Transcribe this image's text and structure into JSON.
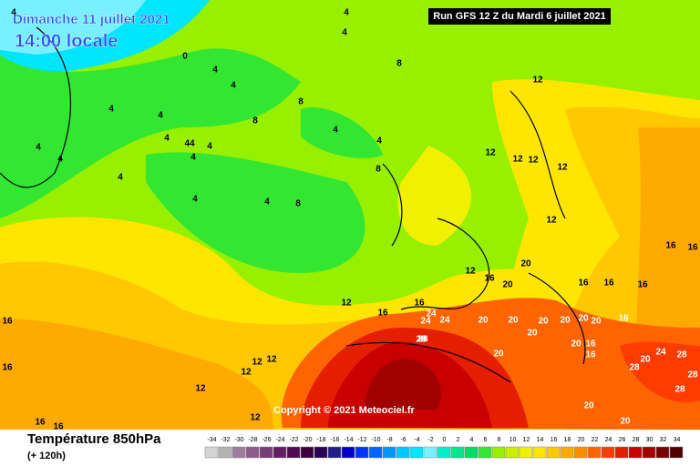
{
  "header": {
    "date": "Dimanche 11 juillet 2021",
    "time": "14:00 locale",
    "run": "Run GFS 12 Z du Mardi 6 juillet 2021"
  },
  "map": {
    "contour_labels": [
      "4",
      "4",
      "0",
      "4",
      "4",
      "4",
      "8",
      "12",
      "4",
      "4",
      "8",
      "8",
      "4",
      "4",
      "4",
      "44",
      "4",
      "4",
      "4",
      "4",
      "4",
      "8",
      "4",
      "4",
      "8",
      "12",
      "12",
      "12",
      "12",
      "12",
      "16",
      "16",
      "12",
      "16",
      "12",
      "16",
      "16",
      "20",
      "20",
      "20",
      "20",
      "24",
      "24",
      "28",
      "20",
      "20",
      "20",
      "20",
      "20",
      "20",
      "24",
      "28",
      "20",
      "16",
      "16",
      "16",
      "16",
      "16",
      "12",
      "12",
      "12",
      "12",
      "12",
      "16",
      "16",
      "16",
      "20",
      "20",
      "28",
      "28",
      "28",
      "24",
      "28",
      "20",
      "16",
      "16"
    ]
  },
  "footer": {
    "copyright": "Copyright © 2021 Meteociel.fr"
  },
  "legend": {
    "title": "Température 850hPa",
    "subtitle": "(+ 120h)",
    "values": [
      -34,
      -32,
      -30,
      -28,
      -26,
      -24,
      -22,
      -20,
      -18,
      -16,
      -14,
      -12,
      -10,
      -8,
      -6,
      -4,
      -2,
      0,
      2,
      4,
      6,
      8,
      10,
      12,
      14,
      16,
      18,
      20,
      22,
      24,
      26,
      28,
      30,
      32,
      34
    ],
    "colors": [
      "#d4d4d4",
      "#b4b4b4",
      "#a07aa0",
      "#8c5a8c",
      "#783c78",
      "#641e64",
      "#500a50",
      "#3c003c",
      "#2a0050",
      "#1e1e8c",
      "#0000c8",
      "#0032ff",
      "#0064ff",
      "#0096ff",
      "#00c8ff",
      "#00e6ff",
      "#78f0ff",
      "#00f0c8",
      "#00e68c",
      "#00dc64",
      "#32e632",
      "#96f000",
      "#c8f000",
      "#f0f000",
      "#ffe600",
      "#ffc800",
      "#ffaa00",
      "#ff8c00",
      "#ff6400",
      "#ff3c00",
      "#e61e00",
      "#c80000",
      "#a00000",
      "#780000",
      "#500000"
    ]
  }
}
